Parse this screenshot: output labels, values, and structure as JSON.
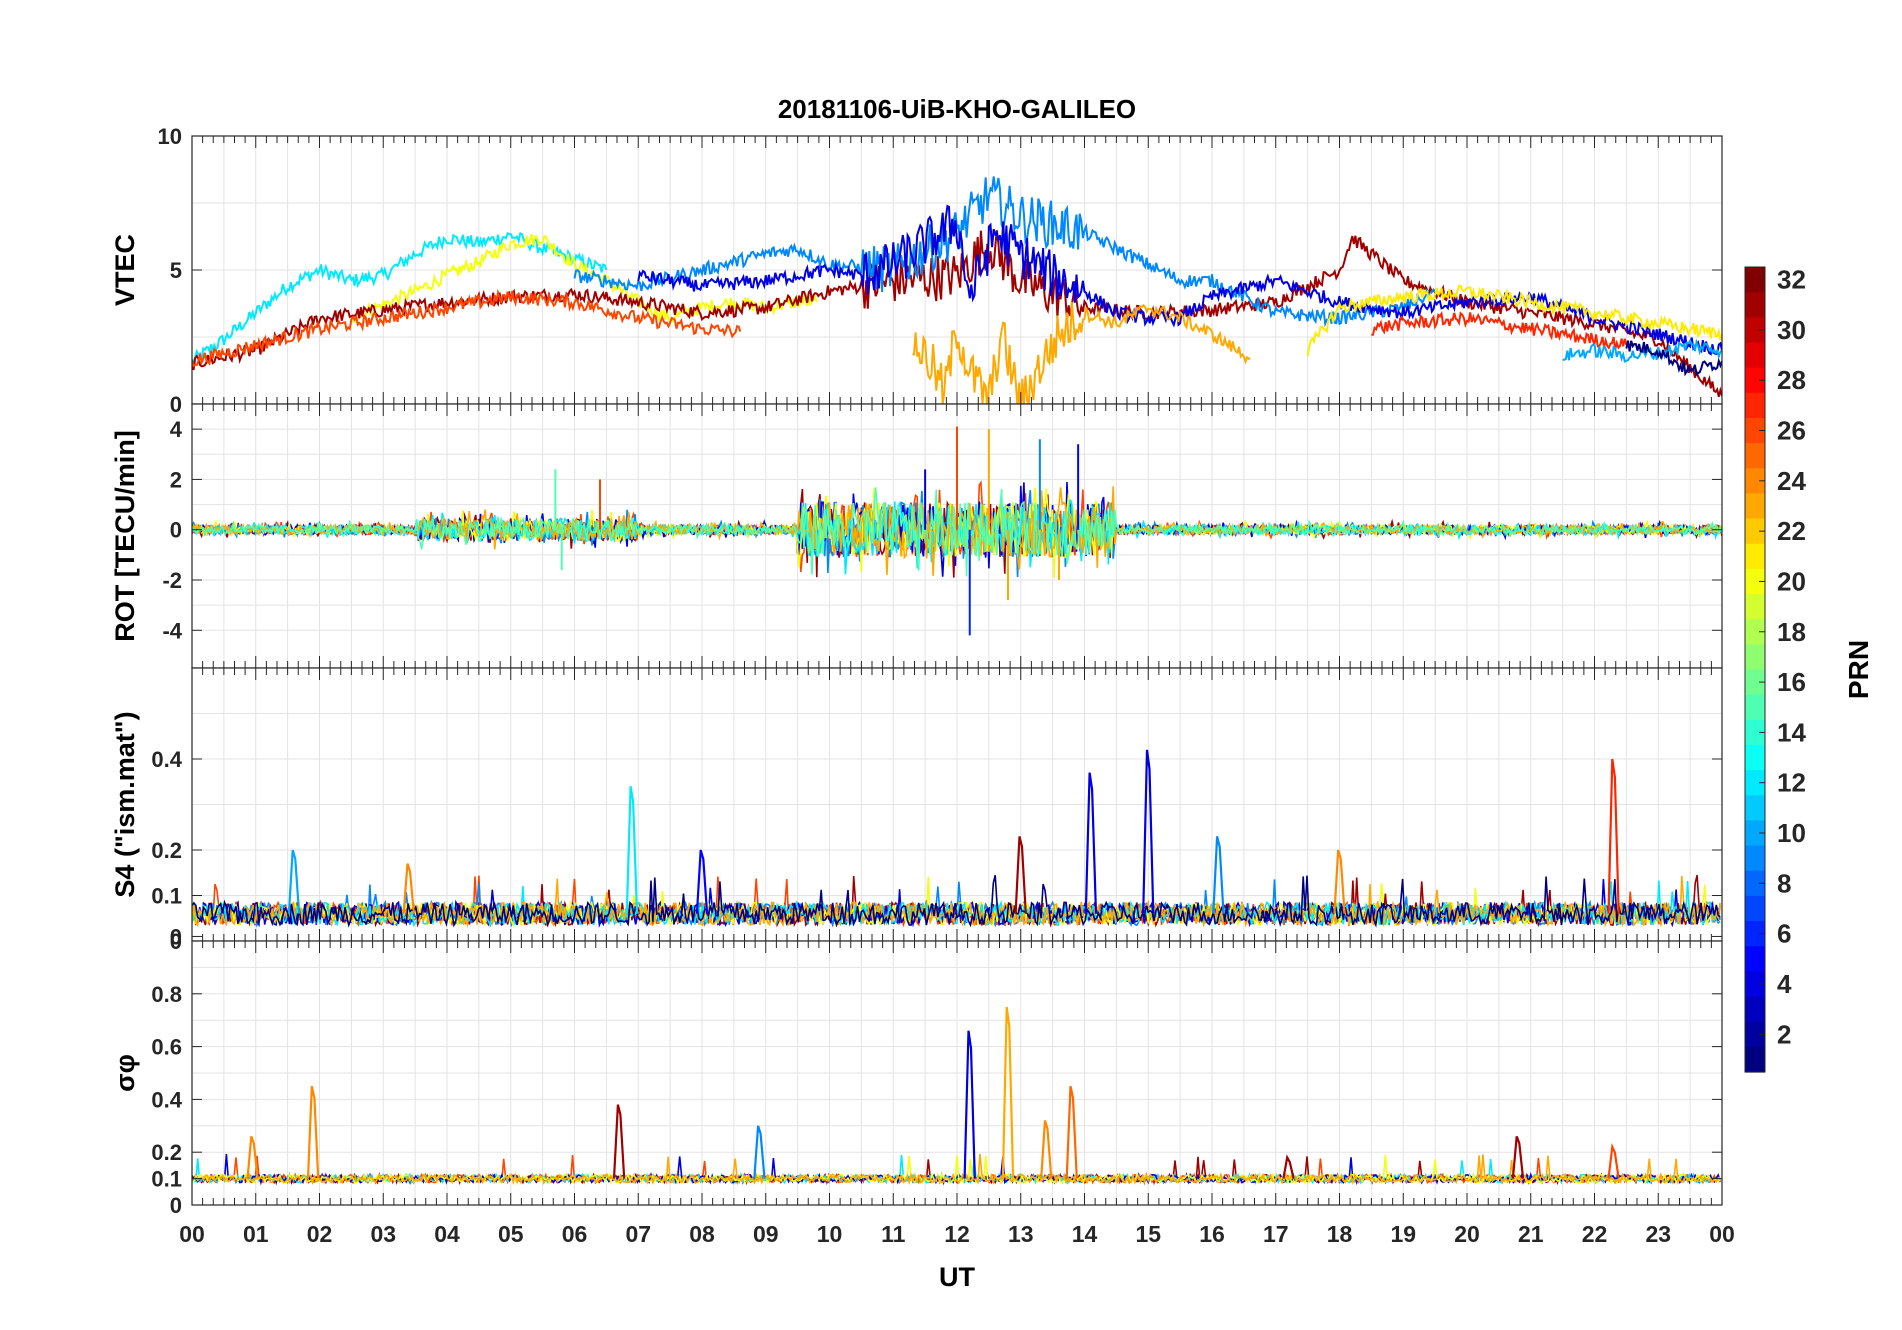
{
  "chart_data": {
    "type": "line",
    "title": "20181106-UiB-KHO-GALILEO",
    "xlabel": "UT",
    "xlim": [
      0,
      24
    ],
    "x_tick_labels": [
      "00",
      "01",
      "02",
      "03",
      "04",
      "05",
      "06",
      "07",
      "08",
      "09",
      "10",
      "11",
      "12",
      "13",
      "14",
      "15",
      "16",
      "17",
      "18",
      "19",
      "20",
      "21",
      "22",
      "23",
      "00"
    ],
    "colorbar": {
      "label": "PRN",
      "range": [
        1,
        32
      ],
      "tick_labels": [
        "2",
        "4",
        "6",
        "8",
        "10",
        "12",
        "14",
        "16",
        "18",
        "20",
        "22",
        "24",
        "26",
        "28",
        "30",
        "32"
      ],
      "colormap": "jet"
    },
    "panels": [
      {
        "ylabel": "VTEC",
        "ylim": [
          0,
          10
        ],
        "y_tick_labels": [
          "0",
          "5",
          "10"
        ],
        "grid": true,
        "series": [
          {
            "prn": 12,
            "x": [
              0,
              0.5,
              1,
              1.5,
              2,
              2.5,
              3,
              3.5,
              4,
              4.5,
              5,
              5.5,
              6,
              6.5
            ],
            "y": [
              1.6,
              2.4,
              3.4,
              4.4,
              5.0,
              4.6,
              4.8,
              5.6,
              6.2,
              6.0,
              6.3,
              5.8,
              5.4,
              5.0
            ]
          },
          {
            "prn": 20,
            "x": [
              2.5,
              3,
              3.5,
              4,
              4.5,
              5,
              5.5,
              6,
              6.5,
              7,
              7.5,
              8,
              8.5,
              9,
              9.5,
              9.8
            ],
            "y": [
              3.2,
              3.7,
              4.2,
              4.8,
              5.3,
              6.0,
              6.2,
              5.2,
              4.6,
              3.8,
              3.2,
              3.6,
              3.8,
              3.6,
              3.8,
              3.8
            ]
          },
          {
            "prn": 31,
            "x": [
              0,
              1,
              2,
              3,
              4,
              5,
              6,
              7,
              8,
              9,
              10,
              11,
              12,
              12.5,
              13,
              14,
              15,
              16,
              17,
              18,
              18.2,
              19,
              20,
              21,
              22,
              23,
              24
            ],
            "y": [
              1.5,
              2.0,
              3.2,
              3.5,
              3.8,
              4.0,
              4.1,
              3.8,
              3.4,
              3.6,
              4.2,
              4.6,
              4.8,
              6.0,
              4.6,
              3.6,
              3.4,
              3.5,
              3.8,
              5.0,
              6.2,
              4.6,
              3.8,
              3.4,
              3.0,
              2.4,
              0.3
            ]
          },
          {
            "prn": 26,
            "x": [
              0,
              1,
              2,
              3,
              4,
              5,
              6,
              7,
              8,
              8.6
            ],
            "y": [
              1.6,
              2.2,
              2.8,
              3.2,
              3.6,
              4.0,
              3.8,
              3.2,
              2.8,
              2.7
            ]
          },
          {
            "prn": 9,
            "x": [
              6,
              7,
              8,
              9,
              9.5,
              10,
              11,
              12,
              12.5,
              13,
              14,
              15,
              15.5,
              16,
              17,
              18,
              19,
              19.5
            ],
            "y": [
              4.8,
              4.4,
              5.0,
              5.6,
              5.8,
              5.2,
              5.0,
              6.4,
              7.8,
              7.0,
              6.4,
              5.2,
              4.6,
              4.6,
              3.4,
              3.2,
              3.6,
              4.2
            ]
          },
          {
            "prn": 4,
            "x": [
              7,
              8,
              9,
              10,
              10.5,
              11,
              11.5,
              12,
              12.2,
              12.6,
              13,
              13.5,
              14,
              14.5,
              15,
              15.5,
              16,
              17,
              18,
              19,
              20,
              21,
              22,
              23,
              24
            ],
            "y": [
              4.8,
              4.4,
              4.6,
              5.0,
              4.8,
              5.2,
              6.0,
              6.8,
              4.0,
              6.4,
              5.6,
              4.8,
              4.2,
              3.4,
              3.2,
              3.2,
              4.0,
              4.6,
              3.8,
              3.4,
              3.8,
              4.0,
              3.2,
              2.6,
              2.0
            ]
          },
          {
            "prn": 23,
            "x": [
              11.3,
              11.6,
              11.8,
              12,
              12.2,
              12.5,
              12.7,
              13,
              13.3,
              13.6,
              14,
              14.5,
              15,
              15.5,
              16,
              16.6
            ],
            "y": [
              2.4,
              1.5,
              0.4,
              2.8,
              1.2,
              0.1,
              2.6,
              0.0,
              1.4,
              2.6,
              3.4,
              3.0,
              3.6,
              3.2,
              2.6,
              1.7
            ]
          },
          {
            "prn": 21,
            "x": [
              17.5,
              18,
              19,
              20,
              21,
              22,
              23,
              24
            ],
            "y": [
              2.0,
              3.6,
              4.0,
              4.2,
              3.8,
              3.4,
              3.0,
              2.6
            ]
          },
          {
            "prn": 27,
            "x": [
              18.5,
              19,
              20,
              21,
              22,
              22.5
            ],
            "y": [
              2.8,
              3.0,
              3.2,
              2.8,
              2.4,
              2.2
            ]
          },
          {
            "prn": 10,
            "x": [
              21.5,
              22,
              22.5,
              23,
              23.5,
              24
            ],
            "y": [
              1.8,
              2.0,
              1.8,
              1.9,
              2.2,
              2.0
            ]
          },
          {
            "prn": 1,
            "x": [
              22.5,
              23,
              23.5,
              24
            ],
            "y": [
              2.2,
              2.0,
              1.2,
              1.6
            ]
          }
        ]
      },
      {
        "ylabel": "ROT [TECU/min]",
        "ylim": [
          -5.5,
          5
        ],
        "y_tick_labels": [
          "-4",
          "-2",
          "0",
          "2",
          "4"
        ],
        "grid": true,
        "series_note": "noise around zero, strongest between 11 and 14 UT",
        "spikes": [
          {
            "x": 5.8,
            "y": -1.6,
            "prn": 15
          },
          {
            "x": 5.7,
            "y": 2.4,
            "prn": 15
          },
          {
            "x": 6.4,
            "y": 2.0,
            "prn": 26
          },
          {
            "x": 11.5,
            "y": 2.4,
            "prn": 4
          },
          {
            "x": 12.0,
            "y": 4.1,
            "prn": 26
          },
          {
            "x": 12.2,
            "y": -4.2,
            "prn": 6
          },
          {
            "x": 12.5,
            "y": 4.0,
            "prn": 23
          },
          {
            "x": 12.8,
            "y": -2.8,
            "prn": 23
          },
          {
            "x": 13.3,
            "y": 3.6,
            "prn": 9
          },
          {
            "x": 13.6,
            "y": -2.0,
            "prn": 23
          },
          {
            "x": 13.9,
            "y": 3.4,
            "prn": 5
          }
        ]
      },
      {
        "ylabel": "S4 (\"ism.mat\")",
        "ylim": [
          0,
          0.6
        ],
        "y_tick_labels": [
          "0",
          "0",
          "0.1",
          "0.2",
          "0.4"
        ],
        "grid": true,
        "baseline": 0.06,
        "peaks": [
          {
            "x": 1.6,
            "y": 0.2,
            "prn": 10
          },
          {
            "x": 3.4,
            "y": 0.17,
            "prn": 24
          },
          {
            "x": 6.9,
            "y": 0.34,
            "prn": 12
          },
          {
            "x": 8.0,
            "y": 0.2,
            "prn": 5
          },
          {
            "x": 13.0,
            "y": 0.23,
            "prn": 31
          },
          {
            "x": 14.1,
            "y": 0.37,
            "prn": 4
          },
          {
            "x": 15.0,
            "y": 0.42,
            "prn": 4
          },
          {
            "x": 16.1,
            "y": 0.23,
            "prn": 9
          },
          {
            "x": 18.0,
            "y": 0.2,
            "prn": 24
          },
          {
            "x": 22.3,
            "y": 0.4,
            "prn": 27
          }
        ]
      },
      {
        "ylabel": "σφ",
        "ylim": [
          0,
          1
        ],
        "y_tick_labels": [
          "0",
          "0.1",
          "0.2",
          "0.4",
          "0.6",
          "0.8"
        ],
        "grid": true,
        "baseline": 0.1,
        "peaks": [
          {
            "x": 0.95,
            "y": 0.26,
            "prn": 24
          },
          {
            "x": 1.9,
            "y": 0.45,
            "prn": 24
          },
          {
            "x": 6.7,
            "y": 0.38,
            "prn": 31
          },
          {
            "x": 8.9,
            "y": 0.3,
            "prn": 9
          },
          {
            "x": 12.2,
            "y": 0.66,
            "prn": 4
          },
          {
            "x": 12.8,
            "y": 0.75,
            "prn": 23
          },
          {
            "x": 13.4,
            "y": 0.32,
            "prn": 24
          },
          {
            "x": 13.8,
            "y": 0.45,
            "prn": 25
          },
          {
            "x": 17.2,
            "y": 0.18,
            "prn": 31
          },
          {
            "x": 20.8,
            "y": 0.26,
            "prn": 31
          },
          {
            "x": 22.3,
            "y": 0.22,
            "prn": 26
          }
        ]
      }
    ]
  }
}
